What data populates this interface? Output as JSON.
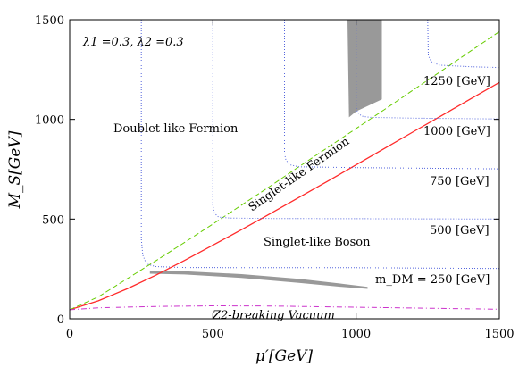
{
  "chart_data": {
    "type": "line",
    "title": "",
    "xlabel": "μ′[GeV]",
    "ylabel": "M_S[GeV]",
    "xlim": [
      0,
      1500
    ],
    "ylim": [
      0,
      1500
    ],
    "x_ticks": [
      0,
      500,
      1000,
      1500
    ],
    "y_ticks": [
      0,
      500,
      1000,
      1500
    ],
    "x_tick_labels": [
      "0",
      "500",
      "1000",
      "1500"
    ],
    "y_tick_labels": [
      "0",
      "500",
      "1000",
      "1500"
    ],
    "grid": false,
    "annotations": {
      "params": "λ1 =0.3, λ2 =0.3",
      "doublet_fermion": "Doublet-like Fermion",
      "singlet_fermion": "Singlet-like Fermion",
      "singlet_boson": "Singlet-like Boson",
      "z2_vacuum": "Z2-breaking Vacuum",
      "mdm_250": "m_DM = 250 [GeV]",
      "mdm_500": "500 [GeV]",
      "mdm_750": "750 [GeV]",
      "mdm_1000": "1000 [GeV]",
      "mdm_1250": "1250 [GeV]"
    },
    "series": [
      {
        "style": "solid",
        "color": "#ff2a2a",
        "points": [
          [
            0,
            45
          ],
          [
            100,
            90
          ],
          [
            200,
            150
          ],
          [
            300,
            218
          ],
          [
            400,
            292
          ],
          [
            500,
            369
          ],
          [
            600,
            447
          ],
          [
            700,
            527
          ],
          [
            800,
            608
          ],
          [
            900,
            689
          ],
          [
            1000,
            772
          ],
          [
            1100,
            855
          ],
          [
            1200,
            938
          ],
          [
            1300,
            1020
          ],
          [
            1400,
            1103
          ],
          [
            1500,
            1185
          ]
        ]
      },
      {
        "style": "dashed",
        "color": "#66cc00",
        "points": [
          [
            0,
            45
          ],
          [
            100,
            110
          ],
          [
            200,
            200
          ],
          [
            300,
            290
          ],
          [
            400,
            382
          ],
          [
            500,
            475
          ],
          [
            600,
            570
          ],
          [
            700,
            665
          ],
          [
            800,
            762
          ],
          [
            900,
            858
          ],
          [
            1000,
            954
          ],
          [
            1100,
            1050
          ],
          [
            1200,
            1148
          ],
          [
            1300,
            1245
          ],
          [
            1400,
            1343
          ],
          [
            1500,
            1440
          ]
        ]
      },
      {
        "style": "dash-dot",
        "color": "#cc33cc",
        "points": [
          [
            0,
            45
          ],
          [
            100,
            55
          ],
          [
            300,
            62
          ],
          [
            500,
            65
          ],
          [
            700,
            64
          ],
          [
            900,
            60
          ],
          [
            1100,
            56
          ],
          [
            1300,
            52
          ],
          [
            1500,
            48
          ]
        ]
      },
      {
        "style": "dotted",
        "color": "#5566dd",
        "label": "250",
        "points": [
          [
            250,
            1500
          ],
          [
            250,
            400
          ],
          [
            255,
            320
          ],
          [
            268,
            275
          ],
          [
            300,
            262
          ],
          [
            400,
            257
          ],
          [
            700,
            256
          ],
          [
            1000,
            256
          ],
          [
            1500,
            252
          ]
        ]
      },
      {
        "style": "dotted",
        "color": "#5566dd",
        "label": "500",
        "points": [
          [
            500,
            1500
          ],
          [
            500,
            570
          ],
          [
            505,
            530
          ],
          [
            520,
            510
          ],
          [
            560,
            505
          ],
          [
            700,
            503
          ],
          [
            1000,
            502
          ],
          [
            1500,
            500
          ]
        ]
      },
      {
        "style": "dotted",
        "color": "#5566dd",
        "label": "750",
        "points": [
          [
            750,
            1500
          ],
          [
            750,
            830
          ],
          [
            755,
            795
          ],
          [
            770,
            772
          ],
          [
            800,
            762
          ],
          [
            1000,
            758
          ],
          [
            1500,
            752
          ]
        ]
      },
      {
        "style": "dotted",
        "color": "#5566dd",
        "label": "1000",
        "points": [
          [
            1000,
            1500
          ],
          [
            1000,
            1060
          ],
          [
            1005,
            1035
          ],
          [
            1020,
            1016
          ],
          [
            1050,
            1010
          ],
          [
            1200,
            1006
          ],
          [
            1500,
            1002
          ]
        ]
      },
      {
        "style": "dotted",
        "color": "#5566dd",
        "label": "1250",
        "points": [
          [
            1250,
            1500
          ],
          [
            1252,
            1320
          ],
          [
            1262,
            1290
          ],
          [
            1290,
            1272
          ],
          [
            1400,
            1264
          ],
          [
            1500,
            1260
          ]
        ]
      }
    ],
    "shaded_regions": [
      {
        "color": "#999999",
        "points": [
          [
            970,
            1500
          ],
          [
            1090,
            1500
          ],
          [
            1090,
            1100
          ],
          [
            1000,
            1040
          ],
          [
            975,
            1010
          ]
        ]
      },
      {
        "color": "#999999",
        "points": [
          [
            280,
            240
          ],
          [
            400,
            238
          ],
          [
            600,
            224
          ],
          [
            800,
            200
          ],
          [
            950,
            176
          ],
          [
            1040,
            160
          ],
          [
            1040,
            150
          ],
          [
            950,
            160
          ],
          [
            800,
            180
          ],
          [
            600,
            205
          ],
          [
            400,
            222
          ],
          [
            280,
            226
          ]
        ]
      }
    ]
  }
}
